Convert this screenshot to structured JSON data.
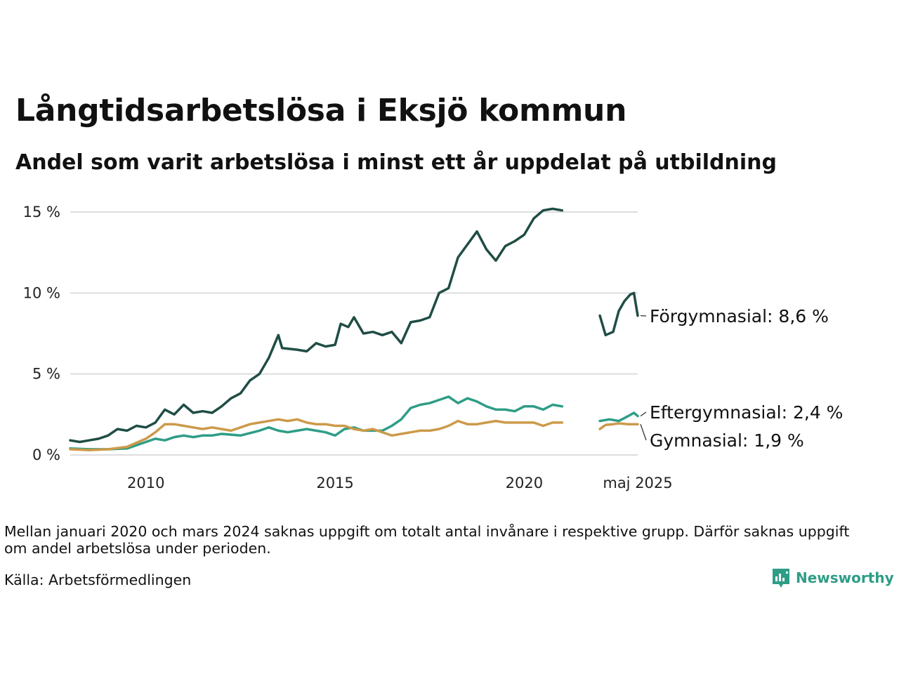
{
  "title": "Långtidsarbetslösa i Eksjö kommun",
  "subtitle": "Andel som varit arbetslösa i minst ett år uppdelat på utbildning",
  "note": "Mellan januari 2020 och mars 2024 saknas uppgift om totalt antal invånare i respektive grupp. Därför saknas uppgift om andel arbetslösa under perioden.",
  "source": "Källa: Arbetsförmedlingen",
  "logo": {
    "name": "Newsworthy",
    "icon": "newsworthy-chart-icon"
  },
  "chart_data": {
    "type": "line",
    "grid": "horizontal",
    "legend": "direct labels at right end",
    "ylim": [
      0,
      15
    ],
    "yticks": [
      {
        "value": 0,
        "label": "0 %"
      },
      {
        "value": 5,
        "label": "5 %"
      },
      {
        "value": 10,
        "label": "10 %"
      },
      {
        "value": 15,
        "label": "15 %"
      }
    ],
    "xlim": [
      2008.0,
      2023.0
    ],
    "xticks": [
      {
        "value": 2010,
        "label": "2010"
      },
      {
        "value": 2015,
        "label": "2015"
      },
      {
        "value": 2020,
        "label": "2020"
      },
      {
        "value": 2023.0,
        "label": "maj 2025"
      }
    ],
    "series": [
      {
        "name": "Förgymnasial",
        "label": "Förgymnasial: 8,6 %",
        "color": "#1f4d45",
        "points": [
          [
            2008.0,
            0.9
          ],
          [
            2008.25,
            0.8
          ],
          [
            2008.5,
            0.9
          ],
          [
            2008.75,
            1.0
          ],
          [
            2009.0,
            1.2
          ],
          [
            2009.25,
            1.6
          ],
          [
            2009.5,
            1.5
          ],
          [
            2009.75,
            1.8
          ],
          [
            2010.0,
            1.7
          ],
          [
            2010.25,
            2.0
          ],
          [
            2010.5,
            2.8
          ],
          [
            2010.75,
            2.5
          ],
          [
            2011.0,
            3.1
          ],
          [
            2011.25,
            2.6
          ],
          [
            2011.5,
            2.7
          ],
          [
            2011.75,
            2.6
          ],
          [
            2012.0,
            3.0
          ],
          [
            2012.25,
            3.5
          ],
          [
            2012.5,
            3.8
          ],
          [
            2012.75,
            4.6
          ],
          [
            2013.0,
            5.0
          ],
          [
            2013.25,
            6.0
          ],
          [
            2013.5,
            7.4
          ],
          [
            2013.6,
            6.6
          ],
          [
            2014.0,
            6.5
          ],
          [
            2014.25,
            6.4
          ],
          [
            2014.5,
            6.9
          ],
          [
            2014.75,
            6.7
          ],
          [
            2015.0,
            6.8
          ],
          [
            2015.15,
            8.1
          ],
          [
            2015.35,
            7.9
          ],
          [
            2015.5,
            8.5
          ],
          [
            2015.75,
            7.5
          ],
          [
            2016.0,
            7.6
          ],
          [
            2016.25,
            7.4
          ],
          [
            2016.5,
            7.6
          ],
          [
            2016.75,
            6.9
          ],
          [
            2017.0,
            8.2
          ],
          [
            2017.25,
            8.3
          ],
          [
            2017.5,
            8.5
          ],
          [
            2017.75,
            10.0
          ],
          [
            2018.0,
            10.3
          ],
          [
            2018.25,
            12.2
          ],
          [
            2018.5,
            13.0
          ],
          [
            2018.75,
            13.8
          ],
          [
            2019.0,
            12.7
          ],
          [
            2019.25,
            12.0
          ],
          [
            2019.5,
            12.9
          ],
          [
            2019.75,
            13.2
          ],
          [
            2020.0,
            13.6
          ],
          [
            2020.25,
            14.6
          ],
          [
            2020.5,
            15.1
          ],
          [
            2020.75,
            15.2
          ],
          [
            2021.0,
            15.1
          ]
        ],
        "points2": [
          [
            2022.0,
            8.6
          ],
          [
            2022.15,
            7.4
          ],
          [
            2022.35,
            7.6
          ],
          [
            2022.5,
            8.9
          ],
          [
            2022.65,
            9.5
          ],
          [
            2022.8,
            9.9
          ],
          [
            2022.9,
            10.0
          ],
          [
            2023.0,
            8.6
          ]
        ]
      },
      {
        "name": "Eftergymnasial",
        "label": "Eftergymnasial: 2,4 %",
        "color": "#2e9d86",
        "points": [
          [
            2008.0,
            0.4
          ],
          [
            2008.5,
            0.35
          ],
          [
            2009.0,
            0.35
          ],
          [
            2009.5,
            0.4
          ],
          [
            2010.0,
            0.8
          ],
          [
            2010.25,
            1.0
          ],
          [
            2010.5,
            0.9
          ],
          [
            2010.75,
            1.1
          ],
          [
            2011.0,
            1.2
          ],
          [
            2011.25,
            1.1
          ],
          [
            2011.5,
            1.2
          ],
          [
            2011.75,
            1.2
          ],
          [
            2012.0,
            1.3
          ],
          [
            2012.5,
            1.2
          ],
          [
            2013.0,
            1.5
          ],
          [
            2013.25,
            1.7
          ],
          [
            2013.5,
            1.5
          ],
          [
            2013.75,
            1.4
          ],
          [
            2014.0,
            1.5
          ],
          [
            2014.25,
            1.6
          ],
          [
            2014.5,
            1.5
          ],
          [
            2014.75,
            1.4
          ],
          [
            2015.0,
            1.2
          ],
          [
            2015.25,
            1.6
          ],
          [
            2015.5,
            1.7
          ],
          [
            2015.75,
            1.5
          ],
          [
            2016.0,
            1.5
          ],
          [
            2016.25,
            1.5
          ],
          [
            2016.5,
            1.8
          ],
          [
            2016.75,
            2.2
          ],
          [
            2017.0,
            2.9
          ],
          [
            2017.25,
            3.1
          ],
          [
            2017.5,
            3.2
          ],
          [
            2017.75,
            3.4
          ],
          [
            2018.0,
            3.6
          ],
          [
            2018.25,
            3.2
          ],
          [
            2018.5,
            3.5
          ],
          [
            2018.75,
            3.3
          ],
          [
            2019.0,
            3.0
          ],
          [
            2019.25,
            2.8
          ],
          [
            2019.5,
            2.8
          ],
          [
            2019.75,
            2.7
          ],
          [
            2020.0,
            3.0
          ],
          [
            2020.25,
            3.0
          ],
          [
            2020.5,
            2.8
          ],
          [
            2020.75,
            3.1
          ],
          [
            2021.0,
            3.0
          ]
        ],
        "points2": [
          [
            2022.0,
            2.1
          ],
          [
            2022.25,
            2.2
          ],
          [
            2022.5,
            2.1
          ],
          [
            2022.75,
            2.4
          ],
          [
            2022.9,
            2.6
          ],
          [
            2023.0,
            2.4
          ]
        ]
      },
      {
        "name": "Gymnasial",
        "label": "Gymnasial: 1,9 %",
        "color": "#cc9a4a",
        "points": [
          [
            2008.0,
            0.35
          ],
          [
            2008.5,
            0.3
          ],
          [
            2009.0,
            0.35
          ],
          [
            2009.5,
            0.5
          ],
          [
            2010.0,
            1.0
          ],
          [
            2010.25,
            1.4
          ],
          [
            2010.5,
            1.9
          ],
          [
            2010.75,
            1.9
          ],
          [
            2011.0,
            1.8
          ],
          [
            2011.25,
            1.7
          ],
          [
            2011.5,
            1.6
          ],
          [
            2011.75,
            1.7
          ],
          [
            2012.0,
            1.6
          ],
          [
            2012.25,
            1.5
          ],
          [
            2012.5,
            1.7
          ],
          [
            2012.75,
            1.9
          ],
          [
            2013.0,
            2.0
          ],
          [
            2013.25,
            2.1
          ],
          [
            2013.5,
            2.2
          ],
          [
            2013.75,
            2.1
          ],
          [
            2014.0,
            2.2
          ],
          [
            2014.25,
            2.0
          ],
          [
            2014.5,
            1.9
          ],
          [
            2014.75,
            1.9
          ],
          [
            2015.0,
            1.8
          ],
          [
            2015.25,
            1.8
          ],
          [
            2015.5,
            1.6
          ],
          [
            2015.75,
            1.5
          ],
          [
            2016.0,
            1.6
          ],
          [
            2016.25,
            1.4
          ],
          [
            2016.5,
            1.2
          ],
          [
            2016.75,
            1.3
          ],
          [
            2017.0,
            1.4
          ],
          [
            2017.25,
            1.5
          ],
          [
            2017.5,
            1.5
          ],
          [
            2017.75,
            1.6
          ],
          [
            2018.0,
            1.8
          ],
          [
            2018.25,
            2.1
          ],
          [
            2018.5,
            1.9
          ],
          [
            2018.75,
            1.9
          ],
          [
            2019.0,
            2.0
          ],
          [
            2019.25,
            2.1
          ],
          [
            2019.5,
            2.0
          ],
          [
            2019.75,
            2.0
          ],
          [
            2020.0,
            2.0
          ],
          [
            2020.25,
            2.0
          ],
          [
            2020.5,
            1.8
          ],
          [
            2020.75,
            2.0
          ],
          [
            2021.0,
            2.0
          ]
        ],
        "points2": [
          [
            2022.0,
            1.6
          ],
          [
            2022.15,
            1.85
          ],
          [
            2022.35,
            1.9
          ],
          [
            2022.5,
            1.95
          ],
          [
            2022.75,
            1.9
          ],
          [
            2023.0,
            1.9
          ]
        ]
      }
    ]
  }
}
